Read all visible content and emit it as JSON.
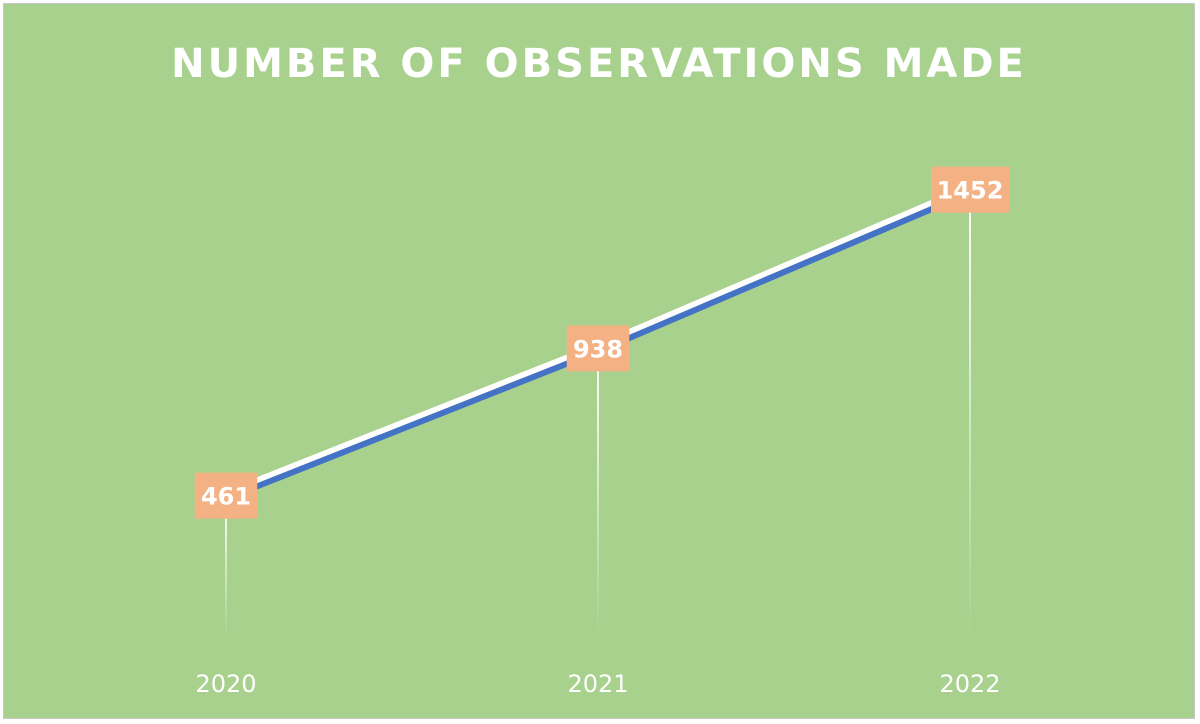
{
  "chart_data": {
    "type": "line",
    "title": "NUMBER OF OBSERVATIONS MADE",
    "categories": [
      "2020",
      "2021",
      "2022"
    ],
    "series": [
      {
        "values": [
          461,
          938,
          1452
        ]
      }
    ],
    "ylim": [
      0,
      1600
    ],
    "grid": false,
    "legend": "none",
    "colors": {
      "background": "#a9d18e",
      "line": "#4472c4",
      "line_highlight": "#ffffff",
      "label_fill": "#f4b183",
      "text": "#ffffff",
      "drop_line": "#ffffff"
    }
  }
}
